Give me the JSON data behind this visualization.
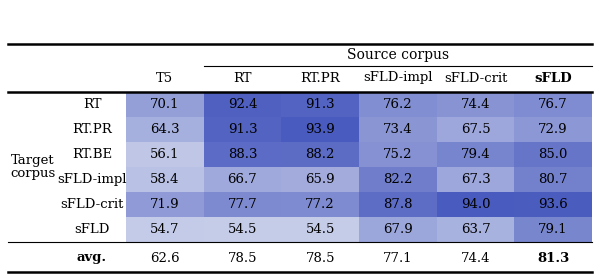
{
  "source_corpus_label": "Source corpus",
  "col_headers": [
    "T5",
    "RT",
    "RT.PR",
    "sFLD-impl",
    "sFLD-crit",
    "sFLD"
  ],
  "row_headers": [
    "RT",
    "RT.PR",
    "RT.BE",
    "sFLD-impl",
    "sFLD-crit",
    "sFLD"
  ],
  "row_group_label_line1": "Target",
  "row_group_label_line2": "corpus",
  "avg_label": "avg.",
  "values": [
    [
      70.1,
      92.4,
      91.3,
      76.2,
      74.4,
      76.7
    ],
    [
      64.3,
      91.3,
      93.9,
      73.4,
      67.5,
      72.9
    ],
    [
      56.1,
      88.3,
      88.2,
      75.2,
      79.4,
      85.0
    ],
    [
      58.4,
      66.7,
      65.9,
      82.2,
      67.3,
      80.7
    ],
    [
      71.9,
      77.7,
      77.2,
      87.8,
      94.0,
      93.6
    ],
    [
      54.7,
      54.5,
      54.5,
      67.9,
      63.7,
      79.1
    ]
  ],
  "avg_values": [
    62.6,
    78.5,
    78.5,
    77.1,
    74.4,
    81.3
  ],
  "color_min": 54.5,
  "color_max": 94.0,
  "c_light": [
    197,
    204,
    232
  ],
  "c_dark": [
    74,
    91,
    191
  ],
  "background_color": "#ffffff",
  "fig_width": 6.0,
  "fig_height": 2.78,
  "dpi": 100
}
